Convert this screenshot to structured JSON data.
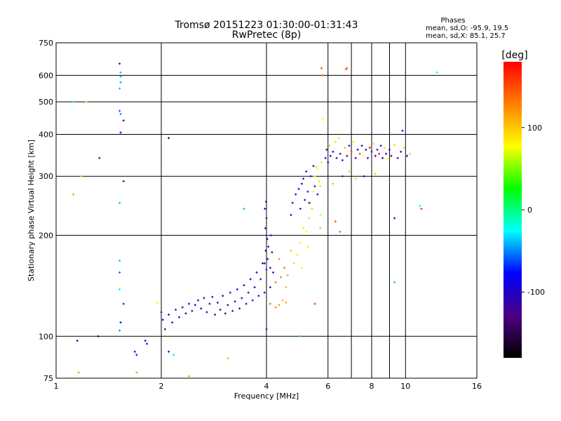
{
  "title": "Tromsø 20151223 01:30:00-01:31:43",
  "subtitle": "RwPretec (8p)",
  "stats": {
    "heading": "Phases",
    "line_o": "mean, sd,O: -95.9, 19.5",
    "line_x": "mean, sd,X: 85.1, 25.7"
  },
  "chart_data": {
    "type": "scatter",
    "title": "Tromsø 20151223 01:30:00-01:31:43",
    "subtitle": "RwPretec (8p)",
    "xlabel": "Frequency [MHz]",
    "ylabel": "Stationary phase Virtual Height [km]",
    "x_scale": "log",
    "y_scale": "log",
    "xlim": [
      1,
      16
    ],
    "ylim": [
      75,
      750
    ],
    "x_ticks": [
      1,
      2,
      4,
      6,
      8,
      10,
      16
    ],
    "x_grid": [
      1,
      2,
      4,
      6,
      7,
      8,
      9,
      10,
      16
    ],
    "y_ticks": [
      75,
      100,
      200,
      300,
      400,
      500,
      600,
      750
    ],
    "grid": true,
    "colorbar": {
      "label": "[deg]",
      "min": -180,
      "max": 180,
      "ticks": [
        100,
        0,
        -100
      ],
      "colors": [
        "#000000",
        "#4b0082",
        "#0000ff",
        "#00ffff",
        "#00ff00",
        "#ffff00",
        "#ff8000",
        "#ff0000"
      ]
    },
    "series": [
      {
        "values": [
          [
            1.52,
            650,
            -130
          ],
          [
            1.53,
            612,
            -40
          ],
          [
            1.53,
            596,
            -50
          ],
          [
            1.53,
            572,
            -45
          ],
          [
            1.52,
            548,
            -40
          ],
          [
            1.52,
            470,
            -60
          ],
          [
            1.53,
            460,
            -50
          ],
          [
            1.53,
            405,
            -80
          ],
          [
            1.56,
            440,
            -135
          ],
          [
            1.56,
            290,
            -110
          ],
          [
            1.52,
            250,
            -40
          ],
          [
            1.52,
            168,
            -40
          ],
          [
            1.52,
            155,
            -60
          ],
          [
            1.52,
            138,
            -30
          ],
          [
            1.56,
            125,
            -70
          ],
          [
            1.53,
            110,
            -80
          ],
          [
            1.52,
            104,
            -50
          ],
          [
            1.12,
            500,
            20
          ],
          [
            1.22,
            500,
            60
          ],
          [
            1.18,
            300,
            100
          ],
          [
            1.33,
            340,
            -130
          ],
          [
            1.12,
            265,
            120
          ],
          [
            2.1,
            390,
            -150
          ],
          [
            1.15,
            97,
            -110
          ],
          [
            1.32,
            100,
            -150
          ],
          [
            1.68,
            90,
            -80
          ],
          [
            1.7,
            88,
            -120
          ],
          [
            1.8,
            97,
            -100
          ],
          [
            1.82,
            95,
            -110
          ],
          [
            1.7,
            78,
            120
          ],
          [
            1.16,
            78,
            120
          ],
          [
            2.17,
            88,
            -30
          ],
          [
            2.4,
            76,
            120
          ],
          [
            3.1,
            86,
            110
          ],
          [
            1.95,
            126,
            70
          ],
          [
            2.0,
            118,
            -110
          ],
          [
            2.02,
            112,
            -90
          ],
          [
            2.05,
            105,
            -100
          ],
          [
            2.1,
            116,
            -100
          ],
          [
            2.15,
            110,
            -95
          ],
          [
            2.2,
            120,
            -100
          ],
          [
            2.25,
            114,
            -110
          ],
          [
            2.3,
            122,
            -100
          ],
          [
            2.35,
            117,
            -105
          ],
          [
            2.4,
            125,
            -90
          ],
          [
            2.45,
            119,
            -100
          ],
          [
            2.5,
            124,
            -110
          ],
          [
            2.55,
            128,
            -95
          ],
          [
            2.6,
            121,
            -100
          ],
          [
            2.65,
            130,
            -105
          ],
          [
            2.7,
            118,
            -120
          ],
          [
            2.75,
            125,
            -100
          ],
          [
            2.8,
            131,
            -95
          ],
          [
            2.85,
            116,
            -130
          ],
          [
            2.9,
            126,
            -100
          ],
          [
            2.95,
            120,
            -110
          ],
          [
            3.0,
            132,
            -95
          ],
          [
            3.05,
            117,
            -130
          ],
          [
            3.1,
            124,
            -105
          ],
          [
            3.15,
            135,
            -90
          ],
          [
            3.2,
            119,
            -120
          ],
          [
            3.25,
            127,
            -100
          ],
          [
            3.3,
            138,
            -95
          ],
          [
            3.35,
            121,
            -115
          ],
          [
            3.4,
            130,
            -100
          ],
          [
            3.45,
            142,
            -90
          ],
          [
            3.5,
            125,
            -110
          ],
          [
            3.55,
            135,
            -100
          ],
          [
            3.6,
            148,
            -95
          ],
          [
            3.65,
            128,
            -120
          ],
          [
            3.7,
            140,
            -100
          ],
          [
            3.75,
            155,
            -90
          ],
          [
            3.8,
            132,
            -110
          ],
          [
            3.85,
            148,
            -95
          ],
          [
            3.9,
            165,
            -100
          ],
          [
            3.95,
            135,
            -120
          ],
          [
            4.0,
            158,
            -100
          ],
          [
            3.98,
            180,
            -95
          ],
          [
            4.02,
            195,
            -100
          ],
          [
            3.97,
            210,
            -90
          ],
          [
            4.0,
            225,
            -100
          ],
          [
            3.96,
            240,
            -85
          ],
          [
            3.99,
            252,
            -90
          ],
          [
            4.03,
            170,
            -110
          ],
          [
            4.05,
            185,
            -100
          ],
          [
            4.1,
            140,
            -100
          ],
          [
            4.1,
            160,
            -95
          ],
          [
            4.12,
            200,
            -90
          ],
          [
            4.15,
            178,
            -100
          ],
          [
            4.18,
            155,
            -105
          ],
          [
            4.1,
            125,
            140
          ],
          [
            4.25,
            122,
            130
          ],
          [
            4.35,
            124,
            120
          ],
          [
            4.45,
            128,
            110
          ],
          [
            4.55,
            126,
            115
          ],
          [
            4.25,
            145,
            135
          ],
          [
            4.4,
            150,
            130
          ],
          [
            4.5,
            160,
            140
          ],
          [
            4.6,
            152,
            120
          ],
          [
            4.35,
            170,
            125
          ],
          [
            4.55,
            140,
            105
          ],
          [
            4.7,
            180,
            100
          ],
          [
            4.8,
            165,
            95
          ],
          [
            4.9,
            175,
            85
          ],
          [
            5.0,
            190,
            80
          ],
          [
            5.05,
            160,
            70
          ],
          [
            5.1,
            210,
            90
          ],
          [
            5.2,
            205,
            75
          ],
          [
            5.25,
            185,
            85
          ],
          [
            5.3,
            225,
            60
          ],
          [
            5.35,
            250,
            70
          ],
          [
            5.4,
            240,
            100
          ],
          [
            5.45,
            270,
            85
          ],
          [
            5.5,
            300,
            80
          ],
          [
            5.55,
            320,
            90
          ],
          [
            5.6,
            315,
            75
          ],
          [
            5.65,
            290,
            60
          ],
          [
            5.7,
            280,
            95
          ],
          [
            5.72,
            230,
            70
          ],
          [
            5.7,
            210,
            50
          ],
          [
            5.75,
            330,
            90
          ],
          [
            5.8,
            445,
            80
          ],
          [
            4.7,
            230,
            -100
          ],
          [
            4.75,
            250,
            -110
          ],
          [
            4.85,
            265,
            -100
          ],
          [
            4.95,
            275,
            -95
          ],
          [
            5.05,
            285,
            -100
          ],
          [
            5.1,
            295,
            -105
          ],
          [
            5.15,
            255,
            -110
          ],
          [
            5.0,
            240,
            -100
          ],
          [
            5.2,
            310,
            -95
          ],
          [
            5.25,
            270,
            -100
          ],
          [
            5.3,
            250,
            -110
          ],
          [
            5.35,
            300,
            -100
          ],
          [
            5.45,
            322,
            -95
          ],
          [
            5.5,
            280,
            -100
          ],
          [
            5.6,
            265,
            -110
          ],
          [
            5.9,
            340,
            -100
          ],
          [
            5.95,
            360,
            -105
          ],
          [
            6.0,
            330,
            -95
          ],
          [
            6.05,
            370,
            100
          ],
          [
            6.1,
            345,
            -100
          ],
          [
            6.2,
            355,
            -110
          ],
          [
            6.3,
            380,
            95
          ],
          [
            6.35,
            340,
            -100
          ],
          [
            6.45,
            390,
            90
          ],
          [
            6.5,
            350,
            -110
          ],
          [
            6.6,
            335,
            -100
          ],
          [
            6.7,
            365,
            100
          ],
          [
            6.8,
            345,
            -105
          ],
          [
            6.9,
            370,
            -100
          ],
          [
            7.0,
            355,
            170
          ],
          [
            7.1,
            380,
            90
          ],
          [
            7.2,
            340,
            -110
          ],
          [
            7.3,
            360,
            -100
          ],
          [
            7.4,
            350,
            160
          ],
          [
            7.5,
            370,
            -100
          ],
          [
            7.6,
            345,
            80
          ],
          [
            7.7,
            360,
            -100
          ],
          [
            7.8,
            340,
            -110
          ],
          [
            7.9,
            365,
            170
          ],
          [
            8.0,
            355,
            -100
          ],
          [
            8.1,
            375,
            90
          ],
          [
            8.2,
            345,
            -105
          ],
          [
            8.3,
            360,
            -110
          ],
          [
            8.4,
            350,
            175
          ],
          [
            8.5,
            370,
            -100
          ],
          [
            8.6,
            340,
            -100
          ],
          [
            8.7,
            365,
            90
          ],
          [
            8.8,
            350,
            -110
          ],
          [
            8.9,
            338,
            80
          ],
          [
            9.0,
            360,
            -100
          ],
          [
            9.1,
            345,
            -105
          ],
          [
            9.3,
            372,
            95
          ],
          [
            9.5,
            340,
            -100
          ],
          [
            9.7,
            355,
            -110
          ],
          [
            9.9,
            365,
            100
          ],
          [
            10.1,
            345,
            -100
          ],
          [
            10.3,
            350,
            90
          ],
          [
            6.6,
            300,
            -100
          ],
          [
            6.9,
            310,
            60
          ],
          [
            7.2,
            295,
            100
          ],
          [
            7.6,
            300,
            -90
          ],
          [
            8.2,
            305,
            100
          ],
          [
            6.2,
            285,
            50
          ],
          [
            5.75,
            630,
            150
          ],
          [
            5.78,
            600,
            140
          ],
          [
            6.8,
            630,
            150
          ],
          [
            6.75,
            625,
            145
          ],
          [
            12.3,
            612,
            -30
          ],
          [
            9.8,
            410,
            -100
          ],
          [
            9.3,
            225,
            -100
          ],
          [
            11.0,
            245,
            -20
          ],
          [
            11.1,
            240,
            160
          ],
          [
            9.3,
            145,
            -40
          ],
          [
            5.0,
            100,
            -40
          ],
          [
            6.3,
            220,
            150
          ],
          [
            6.5,
            205,
            140
          ],
          [
            5.5,
            125,
            160
          ],
          [
            4.0,
            105,
            -100
          ],
          [
            3.45,
            240,
            -40
          ],
          [
            3.95,
            165,
            -110
          ],
          [
            2.1,
            90,
            -90
          ]
        ]
      }
    ]
  }
}
